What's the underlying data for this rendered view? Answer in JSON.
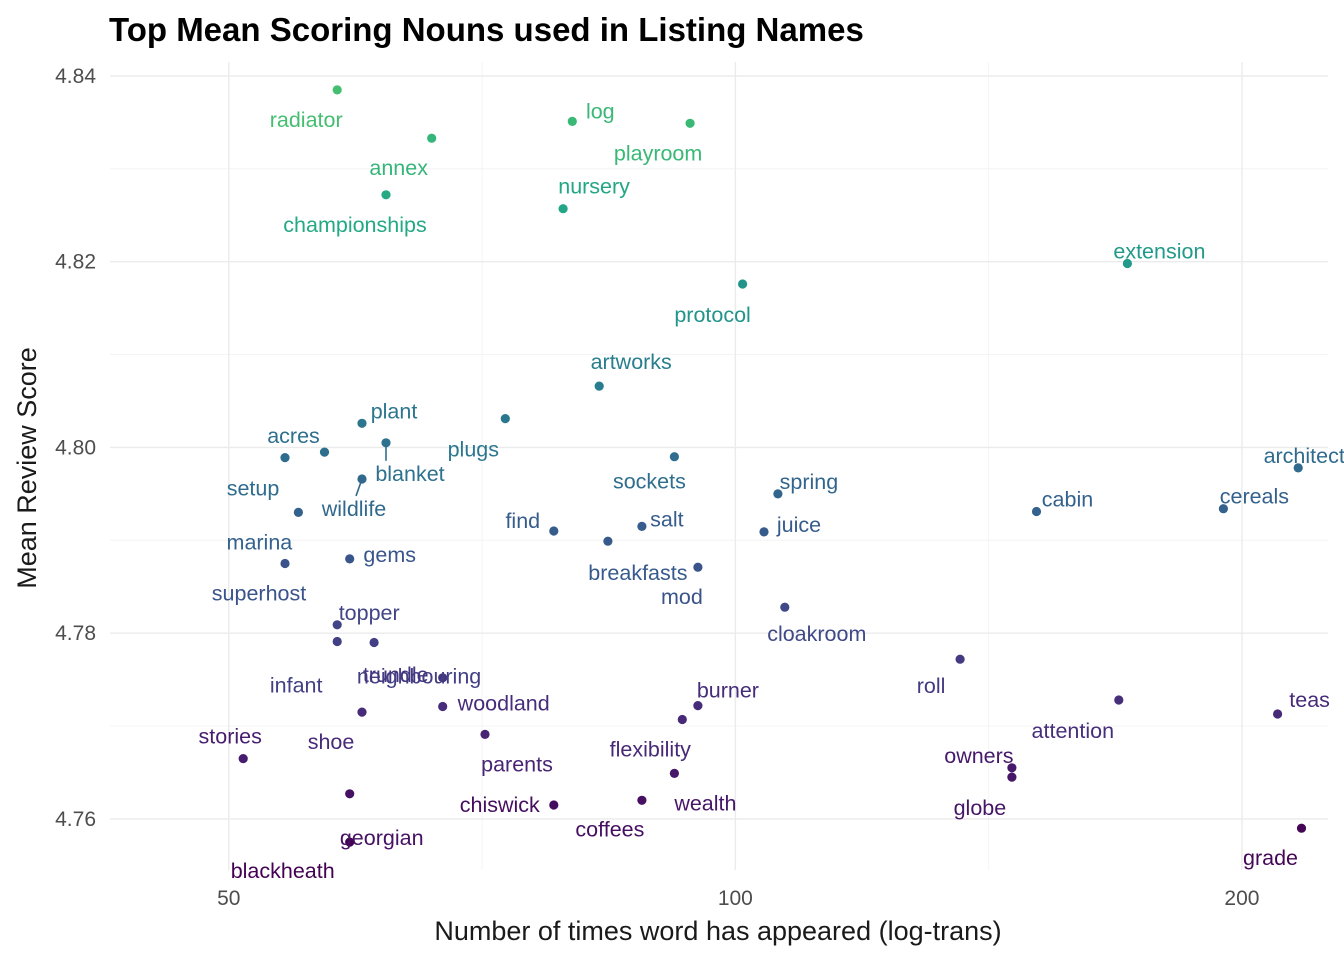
{
  "chart_data": {
    "type": "scatter",
    "title": "Top Mean Scoring Nouns used in Listing Names",
    "xlabel": "Number of times word has appeared (log-trans)",
    "ylabel": "Mean Review Score",
    "x_scale": "log",
    "xlim": [
      42.5,
      225
    ],
    "ylim": [
      4.7545,
      4.8415
    ],
    "x_ticks": [
      50,
      100,
      200
    ],
    "x_tick_labels": [
      "50",
      "100",
      "200"
    ],
    "y_ticks": [
      4.76,
      4.78,
      4.8,
      4.82,
      4.84
    ],
    "y_tick_labels": [
      "4.76",
      "4.78",
      "4.80",
      "4.82",
      "4.84"
    ],
    "grid": true,
    "legend": "none",
    "color_scale": "viridis (by Mean Review Score)",
    "points": [
      {
        "label": "radiator",
        "x": 58,
        "y": 4.8385
      },
      {
        "label": "log",
        "x": 80,
        "y": 4.8351
      },
      {
        "label": "playroom",
        "x": 94,
        "y": 4.8349
      },
      {
        "label": "annex",
        "x": 66,
        "y": 4.8333
      },
      {
        "label": "championships",
        "x": 62,
        "y": 4.8272
      },
      {
        "label": "nursery",
        "x": 79,
        "y": 4.8257
      },
      {
        "label": "extension",
        "x": 171,
        "y": 4.8198
      },
      {
        "label": "protocol",
        "x": 101,
        "y": 4.8176
      },
      {
        "label": "artworks",
        "x": 83,
        "y": 4.8066
      },
      {
        "label": "plugs",
        "x": 73,
        "y": 4.8031
      },
      {
        "label": "plant",
        "x": 60,
        "y": 4.8026
      },
      {
        "label": "blanket",
        "x": 62,
        "y": 4.8005
      },
      {
        "label": "acres",
        "x": 57,
        "y": 4.7995
      },
      {
        "label": "setup",
        "x": 54,
        "y": 4.7989
      },
      {
        "label": "sockets",
        "x": 92,
        "y": 4.799
      },
      {
        "label": "architect",
        "x": 216,
        "y": 4.7978
      },
      {
        "label": "wildlife",
        "x": 60,
        "y": 4.7966
      },
      {
        "label": "spring",
        "x": 106,
        "y": 4.795
      },
      {
        "label": "cereals",
        "x": 195,
        "y": 4.7934
      },
      {
        "label": "cabin",
        "x": 151,
        "y": 4.7931
      },
      {
        "label": "marina",
        "x": 55,
        "y": 4.793
      },
      {
        "label": "salt",
        "x": 88,
        "y": 4.7915
      },
      {
        "label": "find",
        "x": 78,
        "y": 4.791
      },
      {
        "label": "juice",
        "x": 104,
        "y": 4.7909
      },
      {
        "label": "breakfasts",
        "x": 84,
        "y": 4.7899
      },
      {
        "label": "gems",
        "x": 59,
        "y": 4.788
      },
      {
        "label": "superhost",
        "x": 54,
        "y": 4.7875
      },
      {
        "label": "mod",
        "x": 95,
        "y": 4.7871
      },
      {
        "label": "cloakroom",
        "x": 107,
        "y": 4.7828
      },
      {
        "label": "topper",
        "x": 58,
        "y": 4.7809
      },
      {
        "label": "infant",
        "x": 58,
        "y": 4.7791
      },
      {
        "label": "neighbouring",
        "x": 61,
        "y": 4.779
      },
      {
        "label": "roll",
        "x": 136,
        "y": 4.7772
      },
      {
        "label": "trundle",
        "x": 67,
        "y": 4.7752
      },
      {
        "label": "attention",
        "x": 169,
        "y": 4.7728
      },
      {
        "label": "burner",
        "x": 95,
        "y": 4.7722
      },
      {
        "label": "woodland",
        "x": 67,
        "y": 4.7721
      },
      {
        "label": "shoe",
        "x": 60,
        "y": 4.7715
      },
      {
        "label": "teas",
        "x": 210,
        "y": 4.7713
      },
      {
        "label": "flexibility",
        "x": 93,
        "y": 4.7707
      },
      {
        "label": "parents",
        "x": 71,
        "y": 4.7691
      },
      {
        "label": "stories",
        "x": 51,
        "y": 4.7665
      },
      {
        "label": "owners",
        "x": 146,
        "y": 4.7655
      },
      {
        "label": "wealth",
        "x": 92,
        "y": 4.7649
      },
      {
        "label": "globe",
        "x": 146,
        "y": 4.7645
      },
      {
        "label": "georgian",
        "x": 59,
        "y": 4.7627
      },
      {
        "label": "coffees",
        "x": 88,
        "y": 4.762
      },
      {
        "label": "chiswick",
        "x": 78,
        "y": 4.7615
      },
      {
        "label": "grade",
        "x": 217,
        "y": 4.759
      },
      {
        "label": "blackheath",
        "x": 59,
        "y": 4.7575
      }
    ]
  }
}
